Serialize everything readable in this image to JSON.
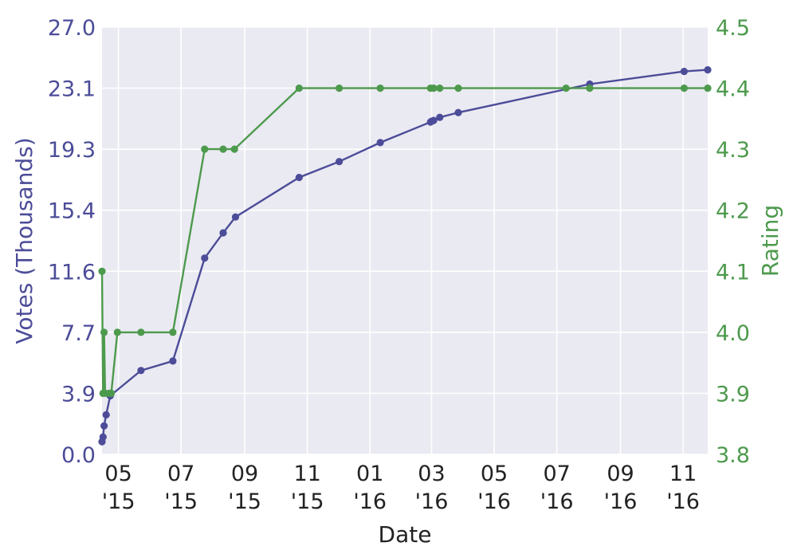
{
  "chart_data": {
    "type": "line",
    "xlabel": "Date",
    "ylabel_left": "Votes (Thousands)",
    "ylabel_right": "Rating",
    "grid": true,
    "x_range": [
      "2015-04-15",
      "2016-11-25"
    ],
    "ylim_left": [
      0,
      27.0
    ],
    "ylim_right": [
      3.8,
      4.5
    ],
    "yticks_left": [
      "0.0",
      "3.9",
      "7.7",
      "11.6",
      "15.4",
      "19.3",
      "23.1",
      "27.0"
    ],
    "yticks_right": [
      "3.8",
      "3.9",
      "4.0",
      "4.1",
      "4.2",
      "4.3",
      "4.4",
      "4.5"
    ],
    "xticks": [
      {
        "date": "2015-05-01",
        "month": "05",
        "year": "'15"
      },
      {
        "date": "2015-07-01",
        "month": "07",
        "year": "'15"
      },
      {
        "date": "2015-09-01",
        "month": "09",
        "year": "'15"
      },
      {
        "date": "2015-11-01",
        "month": "11",
        "year": "'15"
      },
      {
        "date": "2016-01-01",
        "month": "01",
        "year": "'16"
      },
      {
        "date": "2016-03-01",
        "month": "03",
        "year": "'16"
      },
      {
        "date": "2016-05-01",
        "month": "05",
        "year": "'16"
      },
      {
        "date": "2016-07-01",
        "month": "07",
        "year": "'16"
      },
      {
        "date": "2016-09-01",
        "month": "09",
        "year": "'16"
      },
      {
        "date": "2016-11-01",
        "month": "11",
        "year": "'16"
      }
    ],
    "series": [
      {
        "axis": "left",
        "color": "#4c4c99",
        "points": [
          {
            "x": "2015-04-15",
            "y": 0.8
          },
          {
            "x": "2015-04-16",
            "y": 1.1
          },
          {
            "x": "2015-04-17",
            "y": 1.8
          },
          {
            "x": "2015-04-19",
            "y": 2.5
          },
          {
            "x": "2015-04-23",
            "y": 3.7
          },
          {
            "x": "2015-05-23",
            "y": 5.3
          },
          {
            "x": "2015-06-23",
            "y": 5.9
          },
          {
            "x": "2015-07-24",
            "y": 12.4
          },
          {
            "x": "2015-08-11",
            "y": 14.0
          },
          {
            "x": "2015-08-23",
            "y": 15.0
          },
          {
            "x": "2015-10-24",
            "y": 17.5
          },
          {
            "x": "2015-12-02",
            "y": 18.5
          },
          {
            "x": "2016-01-11",
            "y": 19.7
          },
          {
            "x": "2016-02-29",
            "y": 21.0
          },
          {
            "x": "2016-03-01",
            "y": 21.05
          },
          {
            "x": "2016-03-03",
            "y": 21.1
          },
          {
            "x": "2016-03-09",
            "y": 21.3
          },
          {
            "x": "2016-03-27",
            "y": 21.6
          },
          {
            "x": "2016-08-02",
            "y": 23.4
          },
          {
            "x": "2016-11-02",
            "y": 24.2
          },
          {
            "x": "2016-11-25",
            "y": 24.3
          }
        ]
      },
      {
        "axis": "right",
        "color": "#4d9a4d",
        "points": [
          {
            "x": "2015-04-15",
            "y": 4.1
          },
          {
            "x": "2015-04-16",
            "y": 3.9
          },
          {
            "x": "2015-04-17",
            "y": 4.0
          },
          {
            "x": "2015-04-18",
            "y": 3.9
          },
          {
            "x": "2015-04-22",
            "y": 3.9
          },
          {
            "x": "2015-04-24",
            "y": 3.9
          },
          {
            "x": "2015-04-30",
            "y": 4.0
          },
          {
            "x": "2015-05-23",
            "y": 4.0
          },
          {
            "x": "2015-06-23",
            "y": 4.0
          },
          {
            "x": "2015-07-24",
            "y": 4.3
          },
          {
            "x": "2015-08-11",
            "y": 4.3
          },
          {
            "x": "2015-08-22",
            "y": 4.3
          },
          {
            "x": "2015-10-24",
            "y": 4.4
          },
          {
            "x": "2015-12-02",
            "y": 4.4
          },
          {
            "x": "2016-01-11",
            "y": 4.4
          },
          {
            "x": "2016-02-29",
            "y": 4.4
          },
          {
            "x": "2016-03-03",
            "y": 4.4
          },
          {
            "x": "2016-03-09",
            "y": 4.4
          },
          {
            "x": "2016-03-27",
            "y": 4.4
          },
          {
            "x": "2016-07-10",
            "y": 4.4
          },
          {
            "x": "2016-08-02",
            "y": 4.4
          },
          {
            "x": "2016-11-02",
            "y": 4.4
          },
          {
            "x": "2016-11-25",
            "y": 4.4
          }
        ]
      }
    ]
  }
}
